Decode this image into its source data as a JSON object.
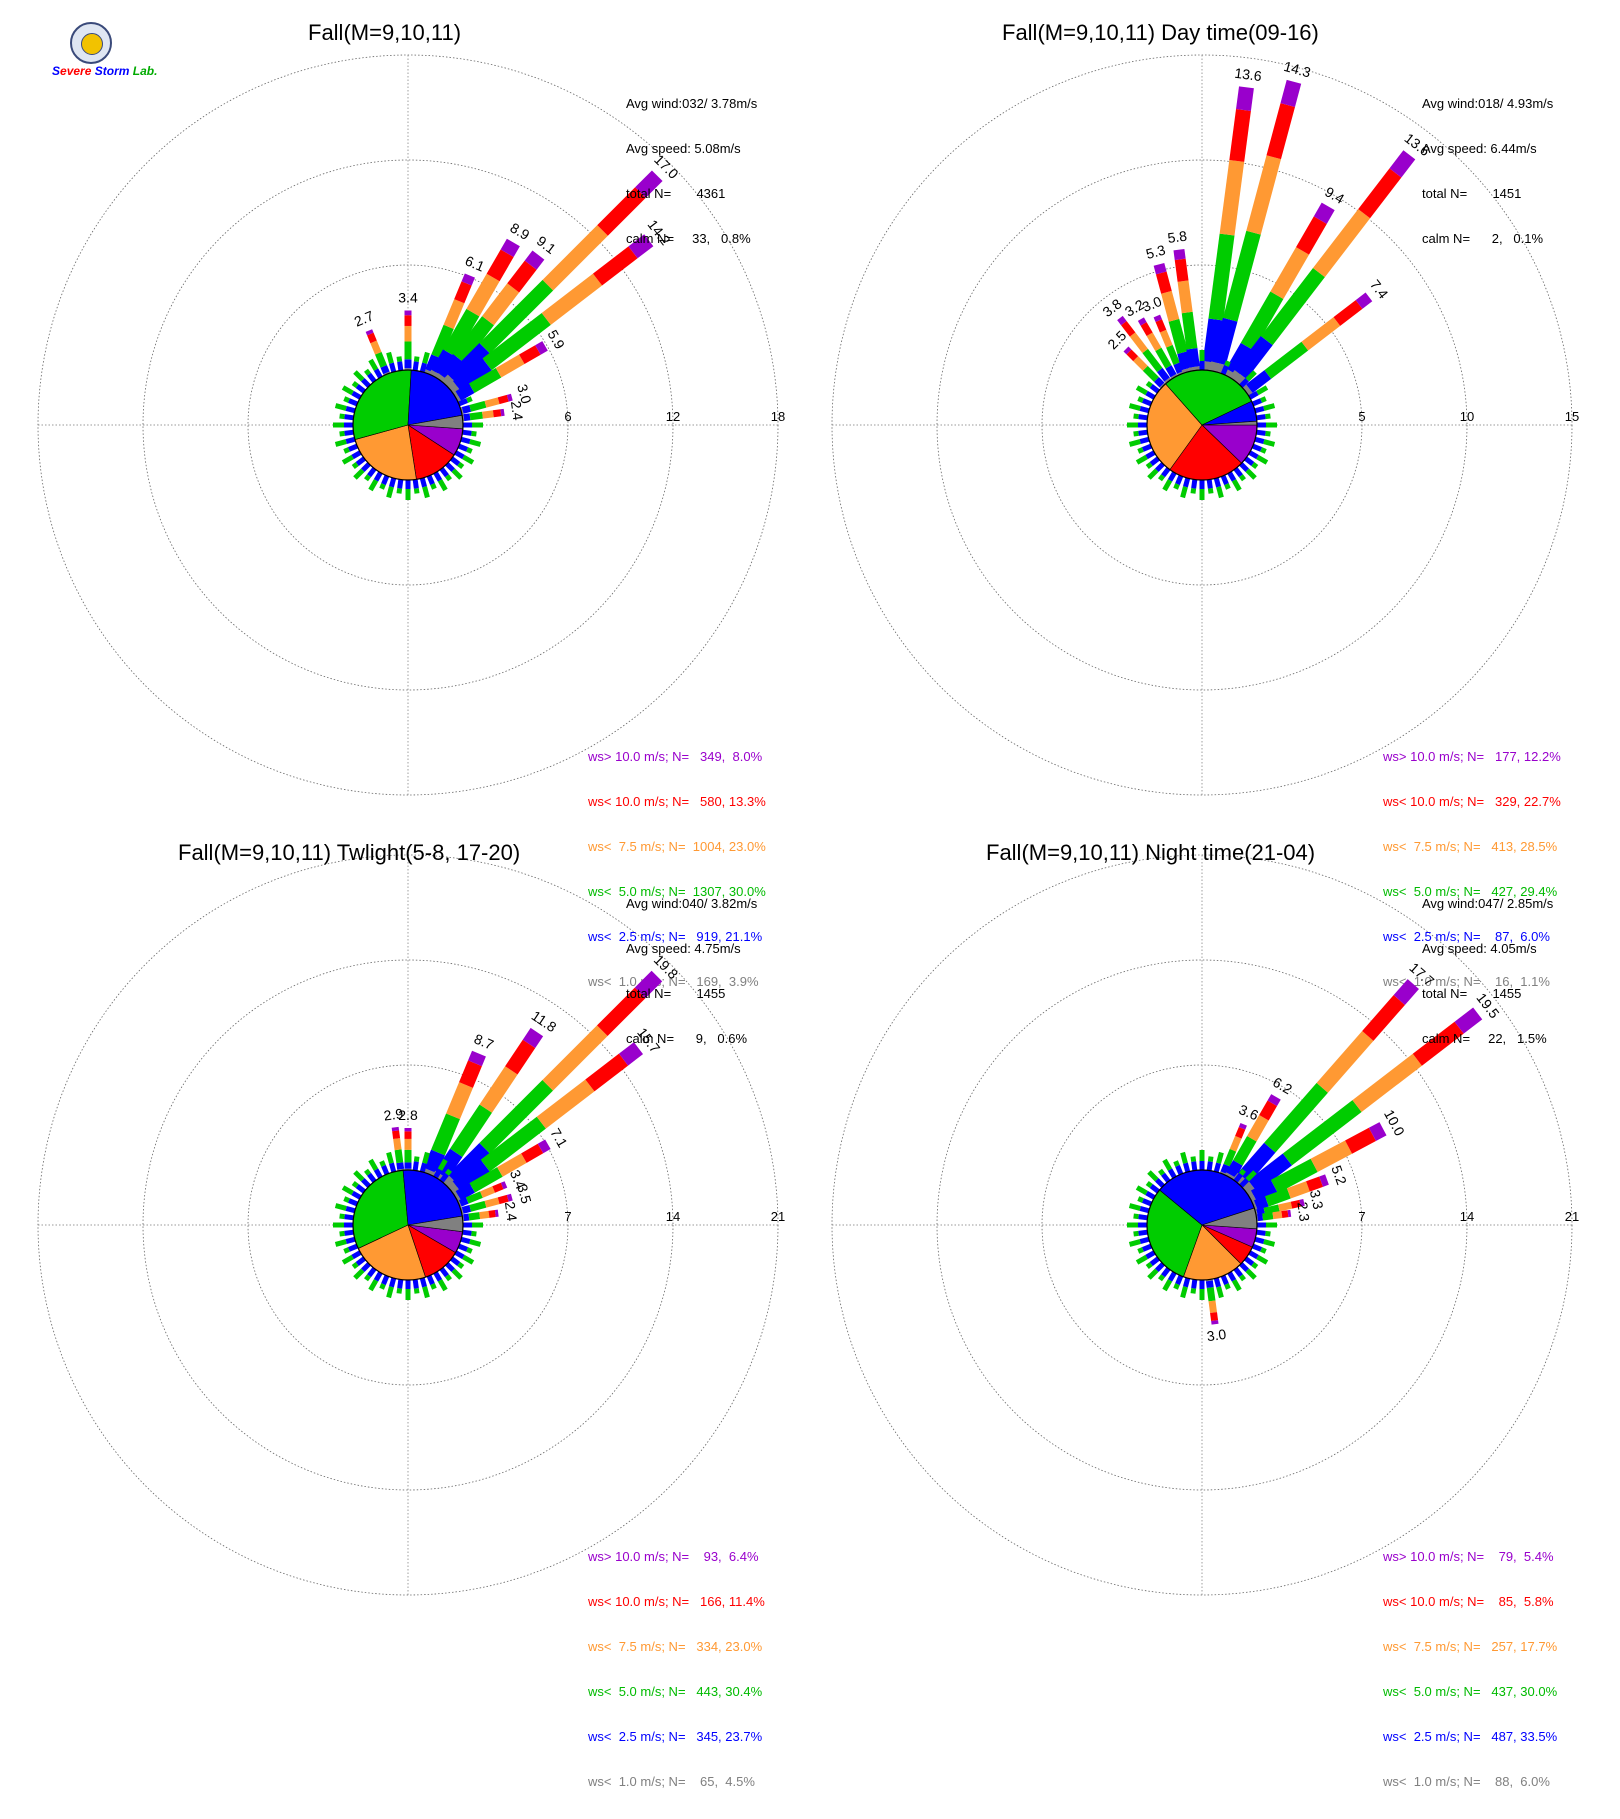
{
  "colors": {
    "calm": "#808080",
    "lt2_5": "#0000ff",
    "lt5_0": "#00cc00",
    "lt7_5": "#ff9933",
    "lt10_0": "#ff0000",
    "gt10_0": "#9900cc"
  },
  "logo": {
    "icon": "severe-storm-lab-seal",
    "text": "Severe Storm Lab."
  },
  "chart_data": [
    {
      "type": "windrose",
      "title": "Fall(M=9,10,11)",
      "rmax": 18,
      "ticks": [
        "6",
        "12",
        "18"
      ],
      "stats": [
        "Avg wind:032/ 3.78m/s",
        "Avg speed: 5.08m/s",
        "total N=       4361",
        "calm N=     33,   0.8%"
      ],
      "legend": [
        "ws> 10.0 m/s; N=   349,  8.0%",
        "ws< 10.0 m/s; N=   580, 13.3%",
        "ws<  7.5 m/s; N=  1004, 23.0%",
        "ws<  5.0 m/s; N=  1307, 30.0%",
        "ws<  2.5 m/s; N=   919, 21.1%",
        "ws<  1.0 m/s; N=   169,  3.9%"
      ],
      "pie": [
        8.0,
        13.3,
        23.0,
        30.0,
        21.1,
        3.9
      ],
      "rays": [
        {
          "dir": 337.5,
          "total": 2.7,
          "label": "2.7"
        },
        {
          "dir": 0,
          "total": 3.4,
          "label": "3.4"
        },
        {
          "dir": 22.5,
          "total": 6.1,
          "label": "6.1"
        },
        {
          "dir": 30,
          "total": 8.9,
          "label": "8.9"
        },
        {
          "dir": 37.5,
          "total": 9.1,
          "label": "9.1"
        },
        {
          "dir": 45,
          "total": 17.0,
          "label": "17.0"
        },
        {
          "dir": 52.5,
          "total": 14.2,
          "label": "14.2"
        },
        {
          "dir": 60,
          "total": 5.9,
          "label": "5.9"
        },
        {
          "dir": 75,
          "total": 3.0,
          "label": "3.0"
        },
        {
          "dir": 82.5,
          "total": 2.4,
          "label": "2.4"
        }
      ]
    },
    {
      "type": "windrose",
      "title": "Fall(M=9,10,11) Day time(09-16)",
      "rmax": 15,
      "ticks": [
        "5",
        "10",
        "15"
      ],
      "stats": [
        "Avg wind:018/ 4.93m/s",
        "Avg speed: 6.44m/s",
        "total N=       1451",
        "calm N=      2,   0.1%"
      ],
      "legend": [
        "ws> 10.0 m/s; N=   177, 12.2%",
        "ws< 10.0 m/s; N=   329, 22.7%",
        "ws<  7.5 m/s; N=   413, 28.5%",
        "ws<  5.0 m/s; N=   427, 29.4%",
        "ws<  2.5 m/s; N=    87,  6.0%",
        "ws<  1.0 m/s; N=    16,  1.1%"
      ],
      "pie": [
        12.2,
        22.7,
        28.5,
        29.4,
        6.0,
        1.1
      ],
      "rays": [
        {
          "dir": 315,
          "total": 2.5,
          "label": "2.5"
        },
        {
          "dir": 322.5,
          "total": 3.8,
          "label": "3.8"
        },
        {
          "dir": 330,
          "total": 3.2,
          "label": "3.2"
        },
        {
          "dir": 337.5,
          "total": 3.0,
          "label": "3.0"
        },
        {
          "dir": 345,
          "total": 5.3,
          "label": "5.3"
        },
        {
          "dir": 352.5,
          "total": 5.8,
          "label": "5.8"
        },
        {
          "dir": 7.5,
          "total": 13.6,
          "label": "13.6"
        },
        {
          "dir": 15,
          "total": 14.3,
          "label": "14.3"
        },
        {
          "dir": 30,
          "total": 9.4,
          "label": "9.4"
        },
        {
          "dir": 37.5,
          "total": 13.6,
          "label": "13.6"
        },
        {
          "dir": 52.5,
          "total": 7.4,
          "label": "7.4"
        }
      ]
    },
    {
      "type": "windrose",
      "title": "Fall(M=9,10,11) Twlight(5-8, 17-20)",
      "rmax": 21,
      "ticks": [
        "7",
        "14",
        "21"
      ],
      "stats": [
        "Avg wind:040/ 3.82m/s",
        "Avg speed: 4.75m/s",
        "total N=       1455",
        "calm N=      9,   0.6%"
      ],
      "legend": [
        "ws> 10.0 m/s; N=    93,  6.4%",
        "ws< 10.0 m/s; N=   166, 11.4%",
        "ws<  7.5 m/s; N=   334, 23.0%",
        "ws<  5.0 m/s; N=   443, 30.4%",
        "ws<  2.5 m/s; N=   345, 23.7%",
        "ws<  1.0 m/s; N=    65,  4.5%"
      ],
      "pie": [
        6.4,
        11.4,
        23.0,
        30.4,
        23.7,
        4.5
      ],
      "rays": [
        {
          "dir": 352.5,
          "total": 2.9,
          "label": "2.9"
        },
        {
          "dir": 0,
          "total": 2.8,
          "label": "2.8"
        },
        {
          "dir": 22.5,
          "total": 8.7,
          "label": "8.7"
        },
        {
          "dir": 33.75,
          "total": 11.8,
          "label": "11.8"
        },
        {
          "dir": 45,
          "total": 19.8,
          "label": "19.8"
        },
        {
          "dir": 52.5,
          "total": 15.7,
          "label": "15.7"
        },
        {
          "dir": 60,
          "total": 7.1,
          "label": "7.1"
        },
        {
          "dir": 67.5,
          "total": 3.4,
          "label": "3.4"
        },
        {
          "dir": 75,
          "total": 3.5,
          "label": "3.5"
        },
        {
          "dir": 82.5,
          "total": 2.4,
          "label": "2.4"
        }
      ]
    },
    {
      "type": "windrose",
      "title": "Fall(M=9,10,11) Night time(21-04)",
      "rmax": 21,
      "ticks": [
        "7",
        "14",
        "21"
      ],
      "stats": [
        "Avg wind:047/ 2.85m/s",
        "Avg speed: 4.05m/s",
        "total N=       1455",
        "calm N=     22,   1.5%"
      ],
      "legend": [
        "ws> 10.0 m/s; N=    79,  5.4%",
        "ws< 10.0 m/s; N=    85,  5.8%",
        "ws<  7.5 m/s; N=   257, 17.7%",
        "ws<  5.0 m/s; N=   437, 30.0%",
        "ws<  2.5 m/s; N=   487, 33.5%",
        "ws<  1.0 m/s; N=    88,  6.0%"
      ],
      "pie": [
        5.4,
        5.8,
        17.7,
        30.0,
        33.5,
        6.0
      ],
      "rays": [
        {
          "dir": 22.5,
          "total": 3.6,
          "label": "3.6"
        },
        {
          "dir": 30,
          "total": 6.2,
          "label": "6.2"
        },
        {
          "dir": 41.25,
          "total": 17.7,
          "label": "17.7"
        },
        {
          "dir": 52.5,
          "total": 19.5,
          "label": "19.5"
        },
        {
          "dir": 62,
          "total": 10.0,
          "label": "10.0"
        },
        {
          "dir": 70,
          "total": 5.2,
          "label": "5.2"
        },
        {
          "dir": 77.5,
          "total": 3.3,
          "label": "3.3"
        },
        {
          "dir": 82.5,
          "total": 2.3,
          "label": "2.3"
        },
        {
          "dir": 172.5,
          "total": 3.0,
          "label": "3.0"
        }
      ]
    }
  ]
}
